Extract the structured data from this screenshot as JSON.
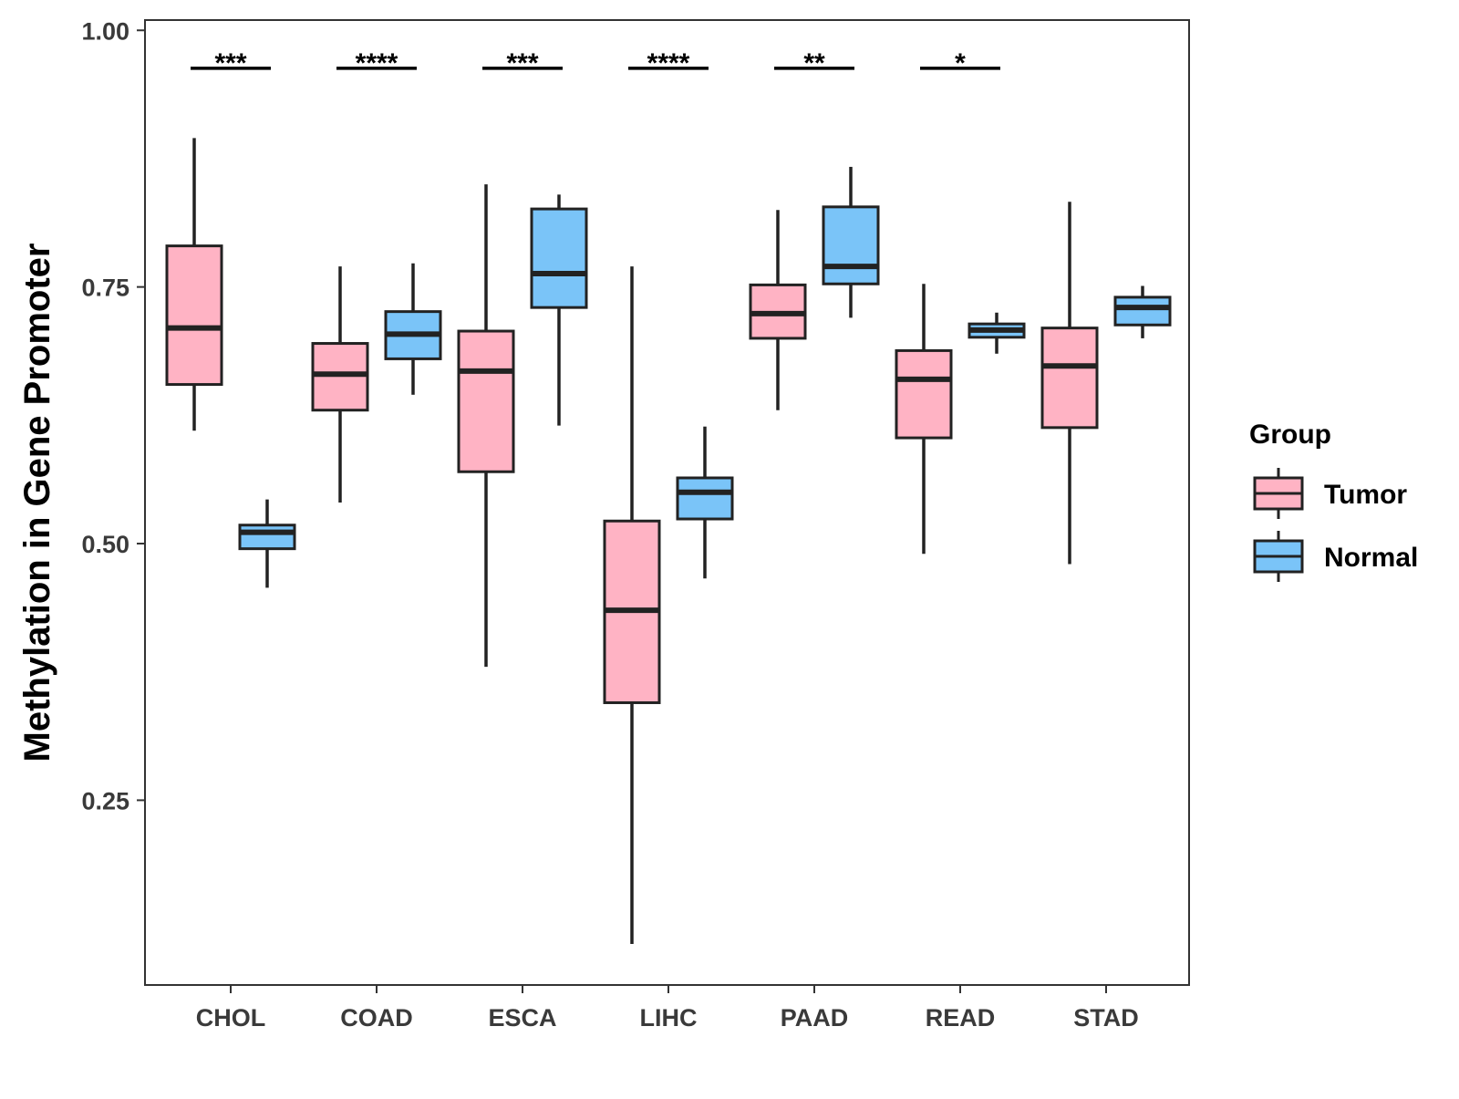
{
  "chart_data": {
    "type": "box",
    "title": "",
    "xlabel": "",
    "ylabel": "Methylation in Gene Promoter",
    "ylim": [
      0.07,
      1.01
    ],
    "yticks": [
      0.25,
      0.5,
      0.75,
      1.0
    ],
    "ytick_labels": [
      "0.25",
      "0.50",
      "0.75",
      "1.00"
    ],
    "grid": false,
    "categories": [
      "CHOL",
      "COAD",
      "ESCA",
      "LIHC",
      "PAAD",
      "READ",
      "STAD"
    ],
    "colors": {
      "Tumor": "#FFB3C4",
      "Normal": "#7AC4F8",
      "stroke": "#222222"
    },
    "legend": {
      "title": "Group",
      "position": "right",
      "entries": [
        "Tumor",
        "Normal"
      ]
    },
    "series": [
      {
        "name": "Tumor",
        "boxes": [
          {
            "min": 0.61,
            "q1": 0.655,
            "median": 0.71,
            "q3": 0.79,
            "max": 0.895
          },
          {
            "min": 0.54,
            "q1": 0.63,
            "median": 0.665,
            "q3": 0.695,
            "max": 0.77
          },
          {
            "min": 0.38,
            "q1": 0.57,
            "median": 0.668,
            "q3": 0.707,
            "max": 0.85
          },
          {
            "min": 0.11,
            "q1": 0.345,
            "median": 0.435,
            "q3": 0.522,
            "max": 0.77
          },
          {
            "min": 0.63,
            "q1": 0.7,
            "median": 0.724,
            "q3": 0.752,
            "max": 0.825
          },
          {
            "min": 0.49,
            "q1": 0.603,
            "median": 0.66,
            "q3": 0.688,
            "max": 0.753
          },
          {
            "min": 0.48,
            "q1": 0.613,
            "median": 0.673,
            "q3": 0.71,
            "max": 0.833
          }
        ]
      },
      {
        "name": "Normal",
        "boxes": [
          {
            "min": 0.457,
            "q1": 0.495,
            "median": 0.511,
            "q3": 0.518,
            "max": 0.543
          },
          {
            "min": 0.645,
            "q1": 0.68,
            "median": 0.704,
            "q3": 0.726,
            "max": 0.773
          },
          {
            "min": 0.615,
            "q1": 0.73,
            "median": 0.763,
            "q3": 0.826,
            "max": 0.84
          },
          {
            "min": 0.466,
            "q1": 0.524,
            "median": 0.55,
            "q3": 0.564,
            "max": 0.614
          },
          {
            "min": 0.72,
            "q1": 0.753,
            "median": 0.77,
            "q3": 0.828,
            "max": 0.867
          },
          {
            "min": 0.685,
            "q1": 0.701,
            "median": 0.708,
            "q3": 0.714,
            "max": 0.725
          },
          {
            "min": 0.7,
            "q1": 0.713,
            "median": 0.73,
            "q3": 0.74,
            "max": 0.751
          }
        ]
      }
    ],
    "annotations": [
      {
        "category": "CHOL",
        "label": "***",
        "y": 0.963
      },
      {
        "category": "COAD",
        "label": "****",
        "y": 0.963
      },
      {
        "category": "ESCA",
        "label": "***",
        "y": 0.963
      },
      {
        "category": "LIHC",
        "label": "****",
        "y": 0.963
      },
      {
        "category": "PAAD",
        "label": "**",
        "y": 0.963
      },
      {
        "category": "READ",
        "label": "*",
        "y": 0.963
      }
    ]
  }
}
